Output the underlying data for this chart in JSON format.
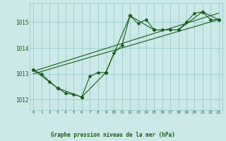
{
  "title": "Graphe pression niveau de la mer (hPa)",
  "background_color": "#cce8e8",
  "grid_color": "#99cccc",
  "line_color": "#1a5c1a",
  "xlim": [
    -0.5,
    23.5
  ],
  "ylim": [
    1011.6,
    1015.75
  ],
  "yticks": [
    1012,
    1013,
    1014,
    1015
  ],
  "xticks": [
    0,
    1,
    2,
    3,
    4,
    5,
    6,
    7,
    8,
    9,
    10,
    11,
    12,
    13,
    14,
    15,
    16,
    17,
    18,
    19,
    20,
    21,
    22,
    23
  ],
  "series1_x": [
    0,
    1,
    2,
    3,
    4,
    5,
    6,
    7,
    8,
    9,
    10,
    11,
    12,
    13,
    14,
    15,
    16,
    17,
    18,
    19,
    20,
    21,
    22,
    23
  ],
  "series1_y": [
    1013.15,
    1013.0,
    1012.7,
    1012.45,
    1012.25,
    1012.2,
    1012.1,
    1012.9,
    1013.05,
    1013.05,
    1013.8,
    1014.1,
    1015.25,
    1014.95,
    1015.1,
    1014.7,
    1014.7,
    1014.7,
    1014.7,
    1015.0,
    1015.35,
    1015.4,
    1015.1,
    1015.1
  ],
  "series2_x": [
    0,
    3,
    6,
    9,
    12,
    15,
    18,
    21,
    23
  ],
  "series2_y": [
    1013.15,
    1012.45,
    1012.1,
    1013.05,
    1015.25,
    1014.7,
    1014.7,
    1015.4,
    1015.1
  ],
  "series3_x": [
    0,
    23
  ],
  "series3_y": [
    1013.0,
    1015.1
  ],
  "series4_x": [
    0,
    23
  ],
  "series4_y": [
    1013.1,
    1015.35
  ]
}
